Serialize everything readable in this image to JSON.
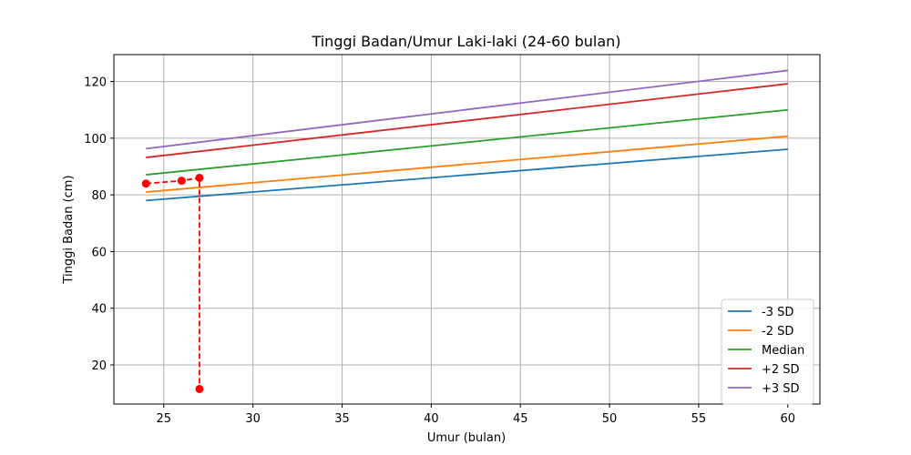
{
  "chart_data": {
    "type": "line",
    "title": "Tinggi Badan/Umur Laki-laki (24-60 bulan)",
    "xlabel": "Umur (bulan)",
    "ylabel": "Tinggi Badan (cm)",
    "xlim": [
      22.2,
      61.8
    ],
    "ylim": [
      6.2,
      129.5
    ],
    "xticks": [
      25,
      30,
      35,
      40,
      45,
      50,
      55,
      60
    ],
    "yticks": [
      20,
      40,
      60,
      80,
      100,
      120
    ],
    "grid": true,
    "legend_position": "lower-right",
    "x": [
      24,
      60
    ],
    "series": [
      {
        "name": "-3 SD",
        "color": "#1f77b4",
        "values": [
          78.0,
          96.1
        ]
      },
      {
        "name": "-2 SD",
        "color": "#ff7f0e",
        "values": [
          81.0,
          100.7
        ]
      },
      {
        "name": "Median",
        "color": "#2ca02c",
        "values": [
          87.1,
          110.0
        ]
      },
      {
        "name": "+2 SD",
        "color": "#d62728",
        "values": [
          93.2,
          119.2
        ]
      },
      {
        "name": "+3 SD",
        "color": "#9467bd",
        "values": [
          96.3,
          123.9
        ]
      }
    ],
    "measurements": {
      "color": "#ff0000",
      "style": "dashed",
      "points": [
        {
          "x": 24,
          "y": 84
        },
        {
          "x": 26,
          "y": 85
        },
        {
          "x": 27,
          "y": 86
        },
        {
          "x": 27,
          "y": 11.5
        }
      ]
    }
  }
}
